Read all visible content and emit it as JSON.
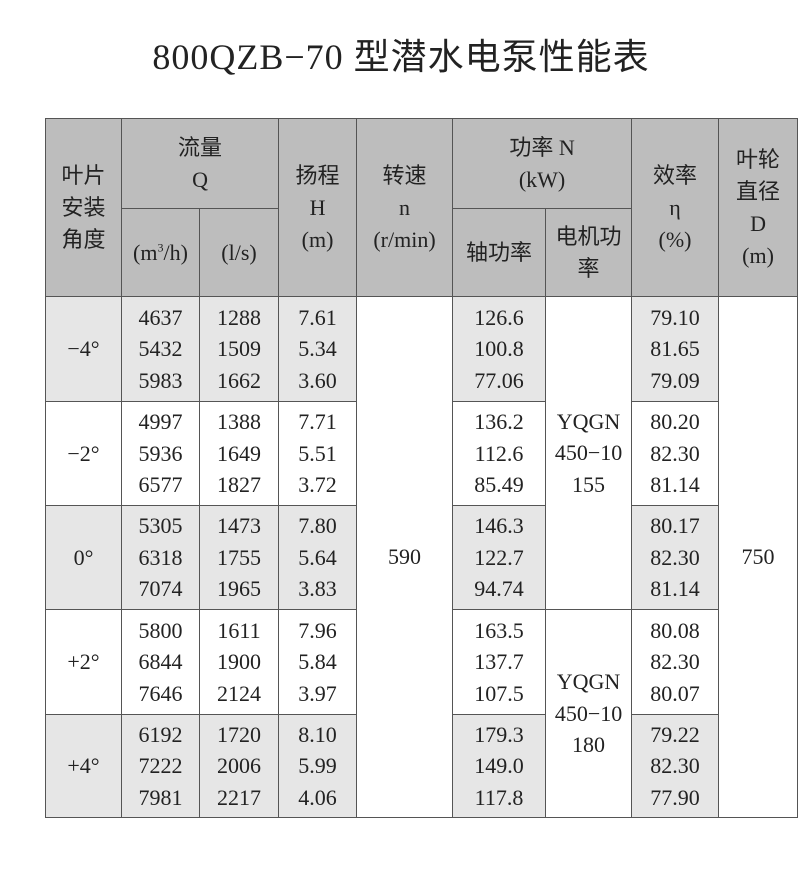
{
  "title": "800QZB−70 型潜水电泵性能表",
  "header": {
    "angle": [
      "叶片",
      "安装",
      "角度"
    ],
    "flow": [
      "流量",
      "Q"
    ],
    "flow_unit_m3h_pre": "(m",
    "flow_unit_m3h_sup": "3",
    "flow_unit_m3h_post": "/h)",
    "flow_unit_ls": "(l/s)",
    "head": [
      "扬程",
      "H",
      "(m)"
    ],
    "speed": [
      "转速",
      "n",
      "(r/min)"
    ],
    "power": [
      "功率 N",
      "(kW)"
    ],
    "shaft_power": "轴功率",
    "motor_power": "电机功率",
    "efficiency": [
      "效率",
      "η",
      "(%)"
    ],
    "diameter": [
      "叶轮",
      "直径",
      "D",
      "(m)"
    ]
  },
  "speed": "590",
  "diameter": "750",
  "motors": [
    {
      "lines": [
        "YQGN",
        "450−10",
        "155"
      ]
    },
    {
      "lines": [
        "YQGN",
        "450−10",
        "180"
      ]
    }
  ],
  "groups": [
    {
      "angle": "−4°",
      "q_m3h": [
        "4637",
        "5432",
        "5983"
      ],
      "q_ls": [
        "1288",
        "1509",
        "1662"
      ],
      "head": [
        "7.61",
        "5.34",
        "3.60"
      ],
      "shaft": [
        "126.6",
        "100.8",
        "77.06"
      ],
      "eff": [
        "79.10",
        "81.65",
        "79.09"
      ]
    },
    {
      "angle": "−2°",
      "q_m3h": [
        "4997",
        "5936",
        "6577"
      ],
      "q_ls": [
        "1388",
        "1649",
        "1827"
      ],
      "head": [
        "7.71",
        "5.51",
        "3.72"
      ],
      "shaft": [
        "136.2",
        "112.6",
        "85.49"
      ],
      "eff": [
        "80.20",
        "82.30",
        "81.14"
      ]
    },
    {
      "angle": "0°",
      "q_m3h": [
        "5305",
        "6318",
        "7074"
      ],
      "q_ls": [
        "1473",
        "1755",
        "1965"
      ],
      "head": [
        "7.80",
        "5.64",
        "3.83"
      ],
      "shaft": [
        "146.3",
        "122.7",
        "94.74"
      ],
      "eff": [
        "80.17",
        "82.30",
        "81.14"
      ]
    },
    {
      "angle": "+2°",
      "q_m3h": [
        "5800",
        "6844",
        "7646"
      ],
      "q_ls": [
        "1611",
        "1900",
        "2124"
      ],
      "head": [
        "7.96",
        "5.84",
        "3.97"
      ],
      "shaft": [
        "163.5",
        "137.7",
        "107.5"
      ],
      "eff": [
        "80.08",
        "82.30",
        "80.07"
      ]
    },
    {
      "angle": "+4°",
      "q_m3h": [
        "6192",
        "7222",
        "7981"
      ],
      "q_ls": [
        "1720",
        "2006",
        "2217"
      ],
      "head": [
        "8.10",
        "5.99",
        "4.06"
      ],
      "shaft": [
        "179.3",
        "149.0",
        "117.8"
      ],
      "eff": [
        "79.22",
        "82.30",
        "77.90"
      ]
    }
  ],
  "colors": {
    "header_bg": "#bdbdbd",
    "shade_bg": "#e6e6e6"
  }
}
